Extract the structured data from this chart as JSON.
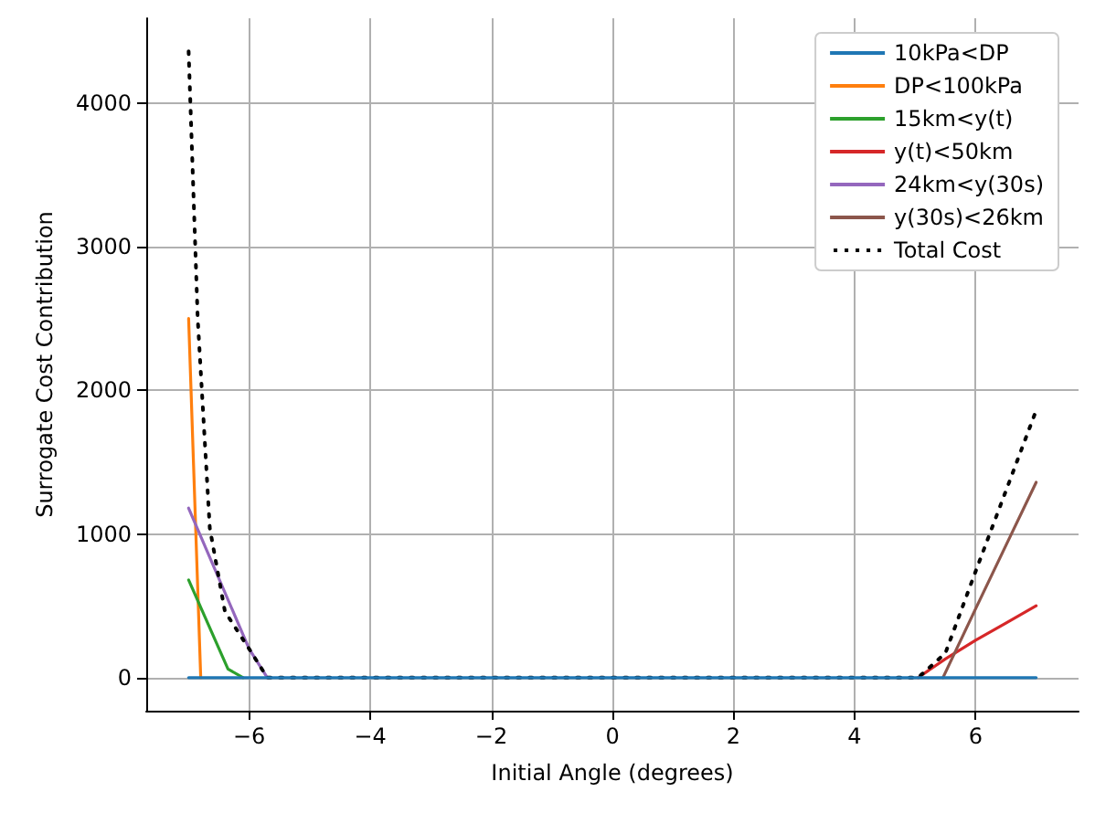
{
  "chart_data": {
    "type": "line",
    "xlabel": "Initial Angle (degrees)",
    "ylabel": "Surrogate Cost Contribution",
    "xlim": [
      -7.7,
      7.7
    ],
    "ylim": [
      -230,
      4590
    ],
    "xticks": [
      {
        "value": -6,
        "label": "−6"
      },
      {
        "value": -4,
        "label": "−4"
      },
      {
        "value": -2,
        "label": "−2"
      },
      0,
      2,
      4,
      6
    ],
    "yticks": [
      0,
      1000,
      2000,
      3000,
      4000
    ],
    "grid": true,
    "legend": "top right",
    "marker": "none",
    "series": [
      {
        "name": "10kPa<DP",
        "color": "#1f77b4",
        "x": [
          -7,
          7
        ],
        "values": [
          0,
          0
        ]
      },
      {
        "name": "DP<100kPa",
        "color": "#ff7f0e",
        "x": [
          -7,
          -6.8
        ],
        "values": [
          2500,
          0
        ]
      },
      {
        "name": "15km<y(t)",
        "color": "#2ca02c",
        "x": [
          -7,
          -6.35,
          -6.1
        ],
        "values": [
          680,
          60,
          0
        ]
      },
      {
        "name": "y(t)<50km",
        "color": "#d62728",
        "x": [
          5.05,
          5.5,
          6,
          6.5,
          7
        ],
        "values": [
          0,
          130,
          260,
          380,
          500
        ]
      },
      {
        "name": "24km<y(30s)",
        "color": "#9467bd",
        "x": [
          -7,
          -6,
          -5.7
        ],
        "values": [
          1180,
          200,
          0
        ]
      },
      {
        "name": "y(30s)<26km",
        "color": "#8c564b",
        "x": [
          5.46,
          6,
          6.5,
          7
        ],
        "values": [
          0,
          480,
          920,
          1360
        ]
      },
      {
        "name": "Total Cost",
        "color": "#000000",
        "line_style": "dotted",
        "x": [
          -7,
          -6.85,
          -6.65,
          -6.4,
          -6,
          -5.7,
          5.05,
          5.5,
          6,
          6.5,
          7
        ],
        "values": [
          4360,
          2500,
          1040,
          460,
          200,
          0,
          0,
          170,
          740,
          1300,
          1860
        ]
      }
    ]
  }
}
